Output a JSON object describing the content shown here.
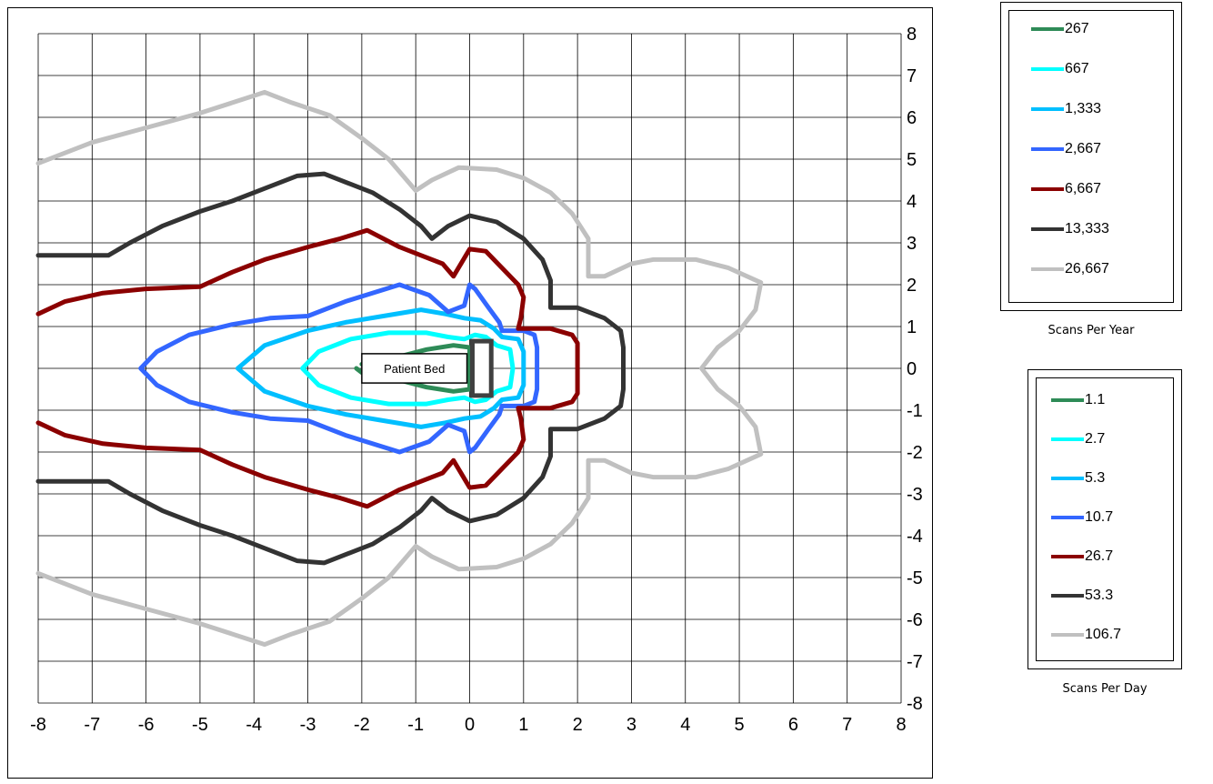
{
  "chart_data": {
    "type": "line",
    "xlim": [
      -8,
      8
    ],
    "ylim": [
      -8,
      8
    ],
    "x_ticks": [
      "-8",
      "-7",
      "-6",
      "-5",
      "-4",
      "-3",
      "-2",
      "-1",
      "0",
      "1",
      "2",
      "3",
      "4",
      "5",
      "6",
      "7",
      "8"
    ],
    "y_ticks": [
      "8",
      "7",
      "6",
      "5",
      "4",
      "3",
      "2",
      "1",
      "0",
      "-1",
      "-2",
      "-3",
      "-4",
      "-5",
      "-6",
      "-7",
      "-8"
    ],
    "grid": true,
    "annotation": {
      "label": "Patient Bed",
      "x0": -2,
      "x1": -0.05,
      "y0": -0.35,
      "y1": 0.35
    },
    "gantry": {
      "x0": 0.05,
      "x1": 0.4,
      "y0": -0.65,
      "y1": 0.65,
      "color": "#404040"
    },
    "series": [
      {
        "name": "267",
        "color": "#2e8b57",
        "points": [
          [
            -2,
            0.1
          ],
          [
            -1.4,
            0.25
          ],
          [
            -0.8,
            0.45
          ],
          [
            -0.3,
            0.55
          ],
          [
            0,
            0.5
          ],
          [
            0,
            -0.5
          ],
          [
            -0.3,
            -0.55
          ],
          [
            -0.8,
            -0.45
          ],
          [
            -1.4,
            -0.25
          ],
          [
            -2,
            -0.1
          ],
          [
            -2.1,
            0
          ]
        ]
      },
      {
        "name": "667",
        "color": "#00ffff",
        "points": [
          [
            -3.1,
            0
          ],
          [
            -2.8,
            0.4
          ],
          [
            -2.2,
            0.7
          ],
          [
            -1.5,
            0.85
          ],
          [
            -0.8,
            0.85
          ],
          [
            -0.4,
            0.75
          ],
          [
            -0.1,
            0.7
          ],
          [
            0.1,
            0.8
          ],
          [
            0.3,
            0.75
          ],
          [
            0.5,
            0.55
          ],
          [
            0.75,
            0.45
          ],
          [
            0.8,
            0
          ],
          [
            0.75,
            -0.45
          ],
          [
            0.5,
            -0.55
          ],
          [
            0.3,
            -0.75
          ],
          [
            0.1,
            -0.8
          ],
          [
            -0.1,
            -0.7
          ],
          [
            -0.4,
            -0.75
          ],
          [
            -0.8,
            -0.85
          ],
          [
            -1.5,
            -0.85
          ],
          [
            -2.2,
            -0.7
          ],
          [
            -2.8,
            -0.4
          ],
          [
            -3.1,
            0
          ]
        ]
      },
      {
        "name": "1,333",
        "color": "#00bfff",
        "points": [
          [
            -4.3,
            0
          ],
          [
            -3.8,
            0.55
          ],
          [
            -3,
            0.9
          ],
          [
            -2.3,
            1.1
          ],
          [
            -1.6,
            1.25
          ],
          [
            -0.9,
            1.4
          ],
          [
            -0.45,
            1.3
          ],
          [
            -0.1,
            1.2
          ],
          [
            0.2,
            1.15
          ],
          [
            0.45,
            0.95
          ],
          [
            0.6,
            0.75
          ],
          [
            0.9,
            0.7
          ],
          [
            1,
            0.4
          ],
          [
            1,
            -0.4
          ],
          [
            0.9,
            -0.7
          ],
          [
            0.6,
            -0.75
          ],
          [
            0.45,
            -0.95
          ],
          [
            0.2,
            -1.15
          ],
          [
            -0.1,
            -1.2
          ],
          [
            -0.45,
            -1.3
          ],
          [
            -0.9,
            -1.4
          ],
          [
            -1.6,
            -1.25
          ],
          [
            -2.3,
            -1.1
          ],
          [
            -3,
            -0.9
          ],
          [
            -3.8,
            -0.55
          ],
          [
            -4.3,
            0
          ]
        ]
      },
      {
        "name": "2,667",
        "color": "#3366ff",
        "points": [
          [
            -6.1,
            0
          ],
          [
            -5.8,
            0.4
          ],
          [
            -5.2,
            0.8
          ],
          [
            -4.4,
            1.05
          ],
          [
            -3.7,
            1.2
          ],
          [
            -3,
            1.25
          ],
          [
            -2.3,
            1.6
          ],
          [
            -1.3,
            2
          ],
          [
            -0.75,
            1.75
          ],
          [
            -0.4,
            1.35
          ],
          [
            -0.1,
            1.5
          ],
          [
            0,
            2
          ],
          [
            0.1,
            1.9
          ],
          [
            0.35,
            1.45
          ],
          [
            0.55,
            1.1
          ],
          [
            0.6,
            0.9
          ],
          [
            1,
            0.9
          ],
          [
            1.2,
            0.8
          ],
          [
            1.25,
            0.5
          ],
          [
            1.25,
            -0.5
          ],
          [
            1.2,
            -0.8
          ],
          [
            1,
            -0.9
          ],
          [
            0.6,
            -0.9
          ],
          [
            0.55,
            -1.1
          ],
          [
            0.35,
            -1.45
          ],
          [
            0.1,
            -1.9
          ],
          [
            0,
            -2
          ],
          [
            -0.1,
            -1.5
          ],
          [
            -0.4,
            -1.35
          ],
          [
            -0.75,
            -1.75
          ],
          [
            -1.3,
            -2
          ],
          [
            -2.3,
            -1.6
          ],
          [
            -3,
            -1.25
          ],
          [
            -3.7,
            -1.2
          ],
          [
            -4.4,
            -1.05
          ],
          [
            -5.2,
            -0.8
          ],
          [
            -5.8,
            -0.4
          ],
          [
            -6.1,
            0
          ]
        ]
      },
      {
        "name": "6,667",
        "color": "#8b0000",
        "points": [
          [
            -8,
            1.3
          ],
          [
            -7.5,
            1.6
          ],
          [
            -6.8,
            1.8
          ],
          [
            -6,
            1.9
          ],
          [
            -5,
            1.95
          ],
          [
            -4.4,
            2.3
          ],
          [
            -3.8,
            2.6
          ],
          [
            -3,
            2.9
          ],
          [
            -2.4,
            3.1
          ],
          [
            -1.9,
            3.3
          ],
          [
            -1.3,
            2.9
          ],
          [
            -0.9,
            2.7
          ],
          [
            -0.5,
            2.5
          ],
          [
            -0.3,
            2.2
          ],
          [
            0,
            2.85
          ],
          [
            0.3,
            2.8
          ],
          [
            0.6,
            2.4
          ],
          [
            0.9,
            2
          ],
          [
            1,
            1.7
          ],
          [
            0.95,
            1.2
          ],
          [
            0.9,
            0.95
          ],
          [
            1.5,
            0.95
          ],
          [
            1.9,
            0.8
          ],
          [
            2,
            0.6
          ],
          [
            2,
            -0.6
          ],
          [
            1.9,
            -0.8
          ],
          [
            1.5,
            -0.95
          ],
          [
            0.9,
            -0.95
          ],
          [
            0.95,
            -1.2
          ],
          [
            1,
            -1.7
          ],
          [
            0.9,
            -2
          ],
          [
            0.6,
            -2.4
          ],
          [
            0.3,
            -2.8
          ],
          [
            0,
            -2.85
          ],
          [
            -0.3,
            -2.2
          ],
          [
            -0.5,
            -2.5
          ],
          [
            -0.9,
            -2.7
          ],
          [
            -1.3,
            -2.9
          ],
          [
            -1.9,
            -3.3
          ],
          [
            -2.4,
            -3.1
          ],
          [
            -3,
            -2.9
          ],
          [
            -3.8,
            -2.6
          ],
          [
            -4.4,
            -2.3
          ],
          [
            -5,
            -1.95
          ],
          [
            -6,
            -1.9
          ],
          [
            -6.8,
            -1.8
          ],
          [
            -7.5,
            -1.6
          ],
          [
            -8,
            -1.3
          ]
        ]
      },
      {
        "name": "13,333",
        "color": "#333333",
        "points": [
          [
            -8,
            2.7
          ],
          [
            -6.7,
            2.7
          ],
          [
            -6.3,
            3
          ],
          [
            -5.7,
            3.4
          ],
          [
            -5,
            3.75
          ],
          [
            -4.4,
            4
          ],
          [
            -3.8,
            4.3
          ],
          [
            -3.2,
            4.6
          ],
          [
            -2.7,
            4.65
          ],
          [
            -2.2,
            4.4
          ],
          [
            -1.8,
            4.2
          ],
          [
            -1.3,
            3.8
          ],
          [
            -0.9,
            3.4
          ],
          [
            -0.7,
            3.1
          ],
          [
            -0.4,
            3.4
          ],
          [
            0,
            3.65
          ],
          [
            0.5,
            3.5
          ],
          [
            1,
            3.1
          ],
          [
            1.35,
            2.6
          ],
          [
            1.5,
            2.1
          ],
          [
            1.5,
            1.45
          ],
          [
            2,
            1.45
          ],
          [
            2.5,
            1.2
          ],
          [
            2.8,
            0.9
          ],
          [
            2.85,
            0.5
          ],
          [
            2.85,
            -0.5
          ],
          [
            2.8,
            -0.9
          ],
          [
            2.5,
            -1.2
          ],
          [
            2,
            -1.45
          ],
          [
            1.5,
            -1.45
          ],
          [
            1.5,
            -2.1
          ],
          [
            1.35,
            -2.6
          ],
          [
            1,
            -3.1
          ],
          [
            0.5,
            -3.5
          ],
          [
            0,
            -3.65
          ],
          [
            -0.4,
            -3.4
          ],
          [
            -0.7,
            -3.1
          ],
          [
            -0.9,
            -3.4
          ],
          [
            -1.3,
            -3.8
          ],
          [
            -1.8,
            -4.2
          ],
          [
            -2.2,
            -4.4
          ],
          [
            -2.7,
            -4.65
          ],
          [
            -3.2,
            -4.6
          ],
          [
            -3.8,
            -4.3
          ],
          [
            -4.4,
            -4
          ],
          [
            -5,
            -3.75
          ],
          [
            -5.7,
            -3.4
          ],
          [
            -6.3,
            -3
          ],
          [
            -6.7,
            -2.7
          ],
          [
            -8,
            -2.7
          ]
        ]
      },
      {
        "name": "26,667",
        "color": "#c0c0c0",
        "points": [
          [
            -8,
            4.9
          ],
          [
            -7,
            5.4
          ],
          [
            -6,
            5.75
          ],
          [
            -5,
            6.1
          ],
          [
            -4.4,
            6.35
          ],
          [
            -3.8,
            6.6
          ],
          [
            -3.3,
            6.35
          ],
          [
            -2.6,
            6.05
          ],
          [
            -2,
            5.5
          ],
          [
            -1.5,
            5
          ],
          [
            -1,
            4.25
          ],
          [
            -0.7,
            4.5
          ],
          [
            -0.2,
            4.8
          ],
          [
            0.5,
            4.75
          ],
          [
            1,
            4.55
          ],
          [
            1.5,
            4.2
          ],
          [
            1.9,
            3.7
          ],
          [
            2.2,
            3.1
          ],
          [
            2.2,
            2.2
          ],
          [
            2.5,
            2.2
          ],
          [
            3,
            2.5
          ],
          [
            3.4,
            2.6
          ],
          [
            4.2,
            2.6
          ],
          [
            4.8,
            2.4
          ],
          [
            5.4,
            2.05
          ],
          [
            5.3,
            1.4
          ],
          [
            5,
            0.9
          ],
          [
            4.6,
            0.5
          ],
          [
            4.3,
            0
          ],
          [
            4.6,
            -0.5
          ],
          [
            5,
            -0.9
          ],
          [
            5.3,
            -1.4
          ],
          [
            5.4,
            -2.05
          ],
          [
            4.8,
            -2.4
          ],
          [
            4.2,
            -2.6
          ],
          [
            3.4,
            -2.6
          ],
          [
            3,
            -2.5
          ],
          [
            2.5,
            -2.2
          ],
          [
            2.2,
            -2.2
          ],
          [
            2.2,
            -3.1
          ],
          [
            1.9,
            -3.7
          ],
          [
            1.5,
            -4.2
          ],
          [
            1,
            -4.55
          ],
          [
            0.5,
            -4.75
          ],
          [
            -0.2,
            -4.8
          ],
          [
            -0.7,
            -4.5
          ],
          [
            -1,
            -4.25
          ],
          [
            -1.5,
            -5
          ],
          [
            -2,
            -5.5
          ],
          [
            -2.6,
            -6.05
          ],
          [
            -3.3,
            -6.35
          ],
          [
            -3.8,
            -6.6
          ],
          [
            -4.4,
            -6.35
          ],
          [
            -5,
            -6.1
          ],
          [
            -6,
            -5.75
          ],
          [
            -7,
            -5.4
          ],
          [
            -8,
            -4.9
          ]
        ]
      }
    ]
  },
  "legend_year": {
    "caption": "Scans Per Year",
    "items": [
      {
        "label": "267",
        "color": "#2e8b57"
      },
      {
        "label": "667",
        "color": "#00ffff"
      },
      {
        "label": "1,333",
        "color": "#00bfff"
      },
      {
        "label": "2,667",
        "color": "#3366ff"
      },
      {
        "label": "6,667",
        "color": "#8b0000"
      },
      {
        "label": "13,333",
        "color": "#333333"
      },
      {
        "label": "26,667",
        "color": "#c0c0c0"
      }
    ]
  },
  "legend_day": {
    "caption": "Scans Per Day",
    "items": [
      {
        "label": "1.1",
        "color": "#2e8b57"
      },
      {
        "label": "2.7",
        "color": "#00ffff"
      },
      {
        "label": "5.3",
        "color": "#00bfff"
      },
      {
        "label": "10.7",
        "color": "#3366ff"
      },
      {
        "label": "26.7",
        "color": "#8b0000"
      },
      {
        "label": "53.3",
        "color": "#333333"
      },
      {
        "label": "106.7",
        "color": "#c0c0c0"
      }
    ]
  }
}
